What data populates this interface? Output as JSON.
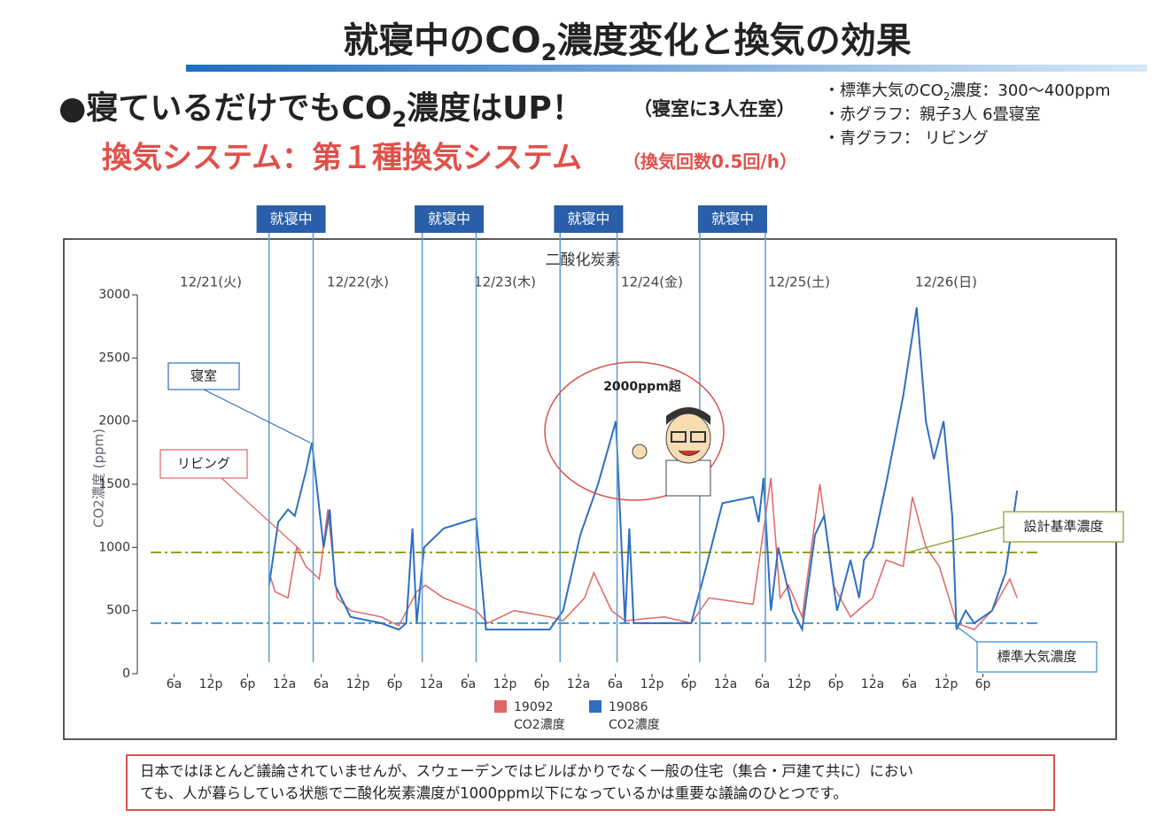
{
  "header": {
    "title": [
      "就寝中のCO",
      "2",
      "濃度変化と換気の効果"
    ]
  },
  "headline": [
    "●寝ているだけでもCO",
    "2",
    "濃度はUP！"
  ],
  "headline_note": "（寝室に3人在室）",
  "system": "換気システム：第１種換気システム",
  "system_note": "（換気回数0.5回/h）",
  "notes": [
    [
      "・標準大気のCO",
      "2",
      "濃度：300～400ppm"
    ],
    [
      "・赤グラフ：親子3人  6畳寝室"
    ],
    [
      "・青グラフ：  リビング"
    ]
  ],
  "chart_data": {
    "type": "line",
    "title": "二酸化炭素",
    "y_label": "CO2濃度 (ppm)",
    "ylim": [
      0,
      3000
    ],
    "yticks": [
      0,
      500,
      1000,
      1500,
      2000,
      2500,
      3000
    ],
    "xlim": [
      0,
      144
    ],
    "xticks": [
      {
        "value": 6,
        "label": "6a"
      },
      {
        "value": 12,
        "label": "12p"
      },
      {
        "value": 18,
        "label": "6p"
      },
      {
        "value": 24,
        "label": "12a"
      },
      {
        "value": 30,
        "label": "6a"
      },
      {
        "value": 36,
        "label": "12p"
      },
      {
        "value": 42,
        "label": "6p"
      },
      {
        "value": 48,
        "label": "12a"
      },
      {
        "value": 54,
        "label": "6a"
      },
      {
        "value": 60,
        "label": "12p"
      },
      {
        "value": 66,
        "label": "6p"
      },
      {
        "value": 72,
        "label": "12a"
      },
      {
        "value": 78,
        "label": "6a"
      },
      {
        "value": 84,
        "label": "12p"
      },
      {
        "value": 90,
        "label": "6p"
      },
      {
        "value": 96,
        "label": "12a"
      },
      {
        "value": 102,
        "label": "6a"
      },
      {
        "value": 108,
        "label": "12p"
      },
      {
        "value": 114,
        "label": "6p"
      },
      {
        "value": 120,
        "label": "12a"
      },
      {
        "value": 126,
        "label": "6a"
      },
      {
        "value": 132,
        "label": "12p"
      },
      {
        "value": 138,
        "label": "6p"
      }
    ],
    "date_labels": [
      {
        "value": 12,
        "label": "12/21(火)"
      },
      {
        "value": 36,
        "label": "12/22(水)"
      },
      {
        "value": 60,
        "label": "12/23(木)"
      },
      {
        "value": 84,
        "label": "12/24(金)"
      },
      {
        "value": 108,
        "label": "12/25(土)"
      },
      {
        "value": 132,
        "label": "12/26(日)"
      }
    ],
    "sleep_label": "就寝中",
    "sleep_periods": [
      [
        21.5,
        28.7
      ],
      [
        46.5,
        55.3
      ],
      [
        69,
        78.3
      ],
      [
        91.8,
        102.5
      ]
    ],
    "reference_lines": [
      {
        "value": 960,
        "color": "#9aa01e"
      },
      {
        "value": 400,
        "color": "#3a9ad8"
      }
    ],
    "legend_sub": "CO2濃度",
    "annotations": [
      "寝室",
      "リビング",
      "2000ppm超",
      "設計基準濃度",
      "標準大気濃度"
    ],
    "series": [
      {
        "name": "19092",
        "color": "#e06666",
        "x": [
          21.5,
          22.5,
          24.6,
          26,
          27.5,
          29.7,
          31.1,
          32.6,
          34.8,
          39.8,
          42.7,
          45.6,
          47,
          50,
          55.3,
          57.2,
          61.5,
          67.3,
          69.5,
          73,
          74.5,
          77.4,
          79.6,
          86,
          90.4,
          93.3,
          100.5,
          103.4,
          104.9,
          106.3,
          108.5,
          111.4,
          113.6,
          116.4,
          120,
          122.2,
          125,
          126.5,
          128.7,
          130.9,
          133.7,
          136.6,
          139.5,
          142.4,
          143.6
        ],
        "values": [
          800,
          650,
          600,
          1000,
          850,
          750,
          1300,
          600,
          500,
          450,
          380,
          650,
          700,
          600,
          500,
          400,
          500,
          450,
          420,
          600,
          800,
          500,
          420,
          450,
          400,
          600,
          550,
          1550,
          600,
          700,
          450,
          1500,
          700,
          450,
          600,
          900,
          850,
          1400,
          1000,
          850,
          400,
          350,
          500,
          750,
          600
        ]
      },
      {
        "name": "19086",
        "color": "#2f6fc0",
        "x": [
          21.5,
          23,
          24.6,
          25.7,
          27.5,
          28.5,
          30.4,
          31.4,
          32.3,
          34.8,
          39.8,
          42.7,
          43.9,
          44.9,
          45.6,
          46.8,
          50,
          55.3,
          56.9,
          67.3,
          69.5,
          72.3,
          75.2,
          78.1,
          79.6,
          80.3,
          81,
          90.4,
          92.6,
          95.5,
          100.5,
          101.4,
          102.2,
          103.4,
          104.6,
          107,
          108.5,
          110.6,
          112.1,
          114.2,
          116.4,
          117.8,
          118.6,
          120,
          122.2,
          125,
          127.2,
          128.7,
          130,
          131.6,
          133,
          133.7,
          135.2,
          136.6,
          139.5,
          141.7,
          143.6
        ],
        "values": [
          700,
          1200,
          1300,
          1250,
          1600,
          1830,
          1000,
          1300,
          700,
          450,
          400,
          350,
          400,
          1150,
          400,
          1000,
          1150,
          1230,
          350,
          350,
          500,
          1100,
          1500,
          2000,
          400,
          1150,
          400,
          400,
          800,
          1350,
          1400,
          1200,
          1550,
          500,
          1000,
          500,
          350,
          1100,
          1250,
          500,
          900,
          600,
          900,
          1000,
          1500,
          2200,
          2900,
          2000,
          1700,
          2000,
          1250,
          350,
          500,
          400,
          500,
          800,
          1450
        ]
      }
    ]
  },
  "footer": [
    "日本ではほとんど議論されていませんが、スウェーデンではビルばかりでなく一般の住宅（集合・戸建て共に）におい",
    "ても、人が暮らしている状態で二酸化炭素濃度が1000ppm以下になっているかは重要な議論のひとつです。"
  ]
}
